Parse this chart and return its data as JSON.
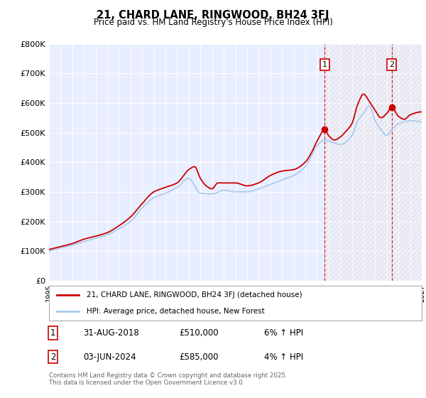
{
  "title": "21, CHARD LANE, RINGWOOD, BH24 3FJ",
  "subtitle": "Price paid vs. HM Land Registry's House Price Index (HPI)",
  "ylabel_ticks": [
    "£0",
    "£100K",
    "£200K",
    "£300K",
    "£400K",
    "£500K",
    "£600K",
    "£700K",
    "£800K"
  ],
  "ylim": [
    0,
    800000
  ],
  "xlim_start": 1995,
  "xlim_end": 2027,
  "red_line_color": "#cc0000",
  "blue_line_color": "#aaccee",
  "vline1_x": 2018.67,
  "vline2_x": 2024.42,
  "marker1_y": 510000,
  "marker2_y": 585000,
  "legend_entries": [
    "21, CHARD LANE, RINGWOOD, BH24 3FJ (detached house)",
    "HPI: Average price, detached house, New Forest"
  ],
  "annotation1": [
    "1",
    "31-AUG-2018",
    "£510,000",
    "6% ↑ HPI"
  ],
  "annotation2": [
    "2",
    "03-JUN-2024",
    "£585,000",
    "4% ↑ HPI"
  ],
  "footer": "Contains HM Land Registry data © Crown copyright and database right 2025.\nThis data is licensed under the Open Government Licence v3.0.",
  "plot_bg_color": "#e8eeff",
  "fig_bg_color": "#ffffff",
  "grid_color": "#ffffff",
  "vline_shading_color": "#d8d8e8"
}
